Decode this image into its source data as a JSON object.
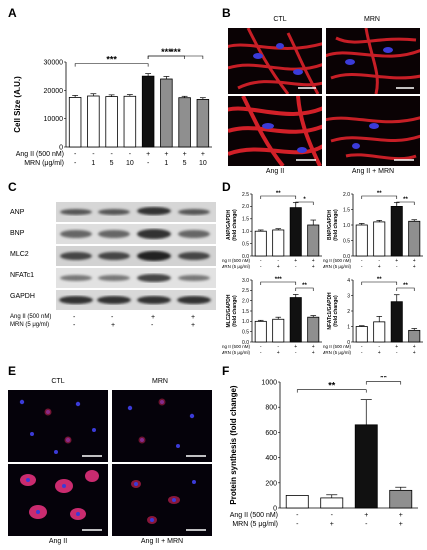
{
  "panels": {
    "A": {
      "label": "A"
    },
    "B": {
      "label": "B",
      "titles": [
        "CTL",
        "MRN"
      ],
      "captions": [
        "Ang II",
        "Ang II + MRN"
      ]
    },
    "C": {
      "label": "C",
      "bands": [
        "ANP",
        "BNP",
        "MLC2",
        "NFATc1",
        "GAPDH"
      ],
      "conds": {
        "row1_label": "Ang II (500 nM)",
        "row2_label": "MRN (5 μg/ml)",
        "row1": [
          "-",
          "-",
          "+",
          "+"
        ],
        "row2": [
          "-",
          "+",
          "-",
          "+"
        ]
      }
    },
    "D": {
      "label": "D"
    },
    "E": {
      "label": "E",
      "titles": [
        "CTL",
        "MRN"
      ],
      "captions": [
        "Ang II",
        "Ang II + MRN"
      ]
    },
    "F": {
      "label": "F"
    }
  },
  "colors": {
    "stain_red": "#e8242c",
    "stain_blue": "#3b3bd8",
    "bar_white": "#ffffff",
    "bar_black": "#111111",
    "bar_gray": "#8f8f8f"
  },
  "chart_data": [
    {
      "id": "A",
      "type": "bar",
      "ylabel": "Cell Size (A.U.)",
      "ylim": [
        0,
        30000
      ],
      "yticks": [
        0,
        10000,
        20000,
        30000
      ],
      "values": [
        17500,
        18000,
        17800,
        17900,
        25000,
        24000,
        17400,
        16800
      ],
      "errors": [
        700,
        800,
        600,
        600,
        900,
        900,
        500,
        600
      ],
      "fills": [
        "white",
        "white",
        "white",
        "white",
        "black",
        "gray",
        "gray",
        "gray"
      ],
      "conditions": {
        "row1_label": "Ang II (500 nM)",
        "row2_label": "MRN (μg/ml)",
        "row1": [
          "-",
          "-",
          "-",
          "-",
          "+",
          "+",
          "+",
          "+"
        ],
        "row2": [
          "-",
          "1",
          "5",
          "10",
          "-",
          "1",
          "5",
          "10"
        ]
      },
      "significance": [
        {
          "from": 0,
          "to": 4,
          "label": "***"
        },
        {
          "from": 4,
          "to": 6,
          "label": "***"
        },
        {
          "from": 4,
          "to": 7,
          "label": "***"
        }
      ]
    },
    {
      "id": "D1",
      "type": "bar",
      "ylabel": "ANP/GAPDH (fold change)",
      "ylim": [
        0,
        2.5
      ],
      "yticks": [
        0,
        0.5,
        1.0,
        1.5,
        2.0,
        2.5
      ],
      "values": [
        1.0,
        1.05,
        1.95,
        1.25
      ],
      "errors": [
        0.05,
        0.05,
        0.2,
        0.2
      ],
      "fills": [
        "white",
        "white",
        "black",
        "gray"
      ],
      "conditions": {
        "row1_label": "Ang II (500 nM)",
        "row2_label": "MRN (5 μg/ml)",
        "row1": [
          "-",
          "-",
          "+",
          "+"
        ],
        "row2": [
          "-",
          "+",
          "-",
          "+"
        ]
      },
      "significance": [
        {
          "from": 0,
          "to": 2,
          "label": "**"
        },
        {
          "from": 2,
          "to": 3,
          "label": "*"
        }
      ]
    },
    {
      "id": "D2",
      "type": "bar",
      "ylabel": "BNP/GAPDH (fold change)",
      "ylim": [
        0,
        2.0
      ],
      "yticks": [
        0,
        0.5,
        1.0,
        1.5,
        2.0
      ],
      "values": [
        1.0,
        1.1,
        1.6,
        1.12
      ],
      "errors": [
        0.05,
        0.05,
        0.12,
        0.05
      ],
      "fills": [
        "white",
        "white",
        "black",
        "gray"
      ],
      "conditions": {
        "row1_label": "Ang II (500 nM)",
        "row2_label": "MRN (5 μg/ml)",
        "row1": [
          "-",
          "-",
          "+",
          "+"
        ],
        "row2": [
          "-",
          "+",
          "-",
          "+"
        ]
      },
      "significance": [
        {
          "from": 0,
          "to": 2,
          "label": "**"
        },
        {
          "from": 2,
          "to": 3,
          "label": "**"
        }
      ]
    },
    {
      "id": "D3",
      "type": "bar",
      "ylabel": "MLC2/GAPDH (fold change)",
      "ylim": [
        0,
        3.0
      ],
      "yticks": [
        0,
        0.5,
        1.0,
        1.5,
        2.0,
        2.5,
        3.0
      ],
      "values": [
        1.0,
        1.1,
        2.15,
        1.2
      ],
      "errors": [
        0.05,
        0.1,
        0.15,
        0.08
      ],
      "fills": [
        "white",
        "white",
        "black",
        "gray"
      ],
      "conditions": {
        "row1_label": "Ang II (500 nM)",
        "row2_label": "MRN (5 μg/ml)",
        "row1": [
          "-",
          "-",
          "+",
          "+"
        ],
        "row2": [
          "-",
          "+",
          "-",
          "+"
        ]
      },
      "significance": [
        {
          "from": 0,
          "to": 2,
          "label": "***"
        },
        {
          "from": 2,
          "to": 3,
          "label": "**"
        }
      ]
    },
    {
      "id": "D4",
      "type": "bar",
      "ylabel": "NFATc1/GAPDH (fold change)",
      "ylim": [
        0,
        4
      ],
      "yticks": [
        0,
        1,
        2,
        3,
        4
      ],
      "values": [
        1.0,
        1.3,
        2.6,
        0.75
      ],
      "errors": [
        0.05,
        0.35,
        0.45,
        0.12
      ],
      "fills": [
        "white",
        "white",
        "black",
        "gray"
      ],
      "conditions": {
        "row1_label": "Ang II (500 nM)",
        "row2_label": "MRN (5 μg/ml)",
        "row1": [
          "-",
          "-",
          "+",
          "+"
        ],
        "row2": [
          "-",
          "+",
          "-",
          "+"
        ]
      },
      "significance": [
        {
          "from": 0,
          "to": 2,
          "label": "**"
        },
        {
          "from": 2,
          "to": 3,
          "label": "**"
        }
      ]
    },
    {
      "id": "F",
      "type": "bar",
      "ylabel": "Protein synthesis (fold change)",
      "ylim": [
        0,
        1000
      ],
      "yticks": [
        0,
        200,
        400,
        600,
        800,
        1000
      ],
      "values": [
        100,
        80,
        660,
        140
      ],
      "errors": [
        0,
        25,
        200,
        25
      ],
      "fills": [
        "white",
        "white",
        "black",
        "gray"
      ],
      "conditions": {
        "row1_label": "Ang II (500 nM)",
        "row2_label": "MRN (5 μg/ml)",
        "row1": [
          "-",
          "-",
          "+",
          "+"
        ],
        "row2": [
          "-",
          "+",
          "-",
          "+"
        ]
      },
      "significance": [
        {
          "from": 0,
          "to": 2,
          "label": "**"
        },
        {
          "from": 2,
          "to": 3,
          "label": "**"
        }
      ]
    }
  ]
}
